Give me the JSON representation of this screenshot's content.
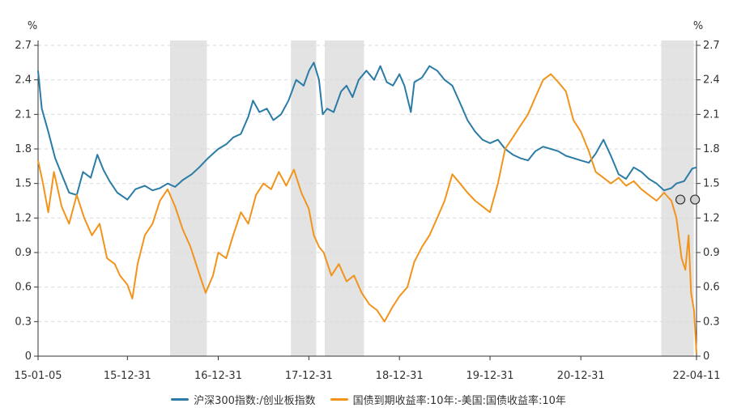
{
  "chart_data": {
    "type": "line",
    "units": {
      "left": "%",
      "right": "%"
    },
    "y_left": {
      "min": 0,
      "max": 2.7,
      "ticks": [
        "0",
        "0.3",
        "0.6",
        "0.9",
        "1.2",
        "1.5",
        "1.8",
        "2.1",
        "2.4",
        "2.7"
      ]
    },
    "y_right": {
      "min": 0,
      "max": 2.7,
      "ticks": [
        "0",
        "0.3",
        "0.6",
        "0.9",
        "1.2",
        "1.5",
        "1.8",
        "2.1",
        "2.4",
        "2.7"
      ]
    },
    "x_axis": {
      "start": "2015-01-05",
      "end": "2022-04-11",
      "ticks": [
        {
          "date": "2015-01-05",
          "label": "15-01-05"
        },
        {
          "date": "2015-12-31",
          "label": "15-12-31"
        },
        {
          "date": "2016-12-31",
          "label": "16-12-31"
        },
        {
          "date": "2017-12-31",
          "label": "17-12-31"
        },
        {
          "date": "2018-12-31",
          "label": "18-12-31"
        },
        {
          "date": "2019-12-31",
          "label": "19-12-31"
        },
        {
          "date": "2020-12-31",
          "label": "20-12-31"
        },
        {
          "date": "2022-04-11",
          "label": "22-04-11"
        }
      ]
    },
    "grid": true,
    "legend_position": "bottom",
    "shaded_periods": [
      {
        "start": "2016-06-20",
        "end": "2016-11-15"
      },
      {
        "start": "2017-10-20",
        "end": "2018-01-30"
      },
      {
        "start": "2018-03-05",
        "end": "2018-08-10"
      },
      {
        "start": "2021-11-20",
        "end": "2022-03-31"
      }
    ],
    "series": [
      {
        "name": "沪深300指数:/创业板指数",
        "color": "#2a7ca6",
        "axis": "left",
        "points": [
          [
            "2015-01-05",
            2.48
          ],
          [
            "2015-01-20",
            2.15
          ],
          [
            "2015-02-15",
            1.95
          ],
          [
            "2015-03-15",
            1.72
          ],
          [
            "2015-04-10",
            1.58
          ],
          [
            "2015-05-10",
            1.42
          ],
          [
            "2015-06-10",
            1.4
          ],
          [
            "2015-07-05",
            1.6
          ],
          [
            "2015-08-05",
            1.55
          ],
          [
            "2015-09-01",
            1.75
          ],
          [
            "2015-09-25",
            1.62
          ],
          [
            "2015-10-20",
            1.52
          ],
          [
            "2015-11-20",
            1.42
          ],
          [
            "2015-12-31",
            1.36
          ],
          [
            "2016-02-01",
            1.45
          ],
          [
            "2016-03-10",
            1.48
          ],
          [
            "2016-04-10",
            1.44
          ],
          [
            "2016-05-10",
            1.46
          ],
          [
            "2016-06-10",
            1.5
          ],
          [
            "2016-07-10",
            1.47
          ],
          [
            "2016-08-10",
            1.53
          ],
          [
            "2016-09-15",
            1.58
          ],
          [
            "2016-10-15",
            1.64
          ],
          [
            "2016-11-20",
            1.72
          ],
          [
            "2016-12-31",
            1.8
          ],
          [
            "2017-02-01",
            1.84
          ],
          [
            "2017-03-01",
            1.9
          ],
          [
            "2017-04-01",
            1.93
          ],
          [
            "2017-05-01",
            2.08
          ],
          [
            "2017-05-20",
            2.22
          ],
          [
            "2017-06-15",
            2.12
          ],
          [
            "2017-07-15",
            2.15
          ],
          [
            "2017-08-10",
            2.05
          ],
          [
            "2017-09-10",
            2.1
          ],
          [
            "2017-10-10",
            2.22
          ],
          [
            "2017-11-10",
            2.4
          ],
          [
            "2017-12-10",
            2.35
          ],
          [
            "2018-01-01",
            2.48
          ],
          [
            "2018-01-20",
            2.55
          ],
          [
            "2018-02-10",
            2.4
          ],
          [
            "2018-02-25",
            2.1
          ],
          [
            "2018-03-15",
            2.15
          ],
          [
            "2018-04-10",
            2.12
          ],
          [
            "2018-05-10",
            2.3
          ],
          [
            "2018-06-01",
            2.35
          ],
          [
            "2018-06-25",
            2.25
          ],
          [
            "2018-07-20",
            2.4
          ],
          [
            "2018-08-20",
            2.48
          ],
          [
            "2018-09-20",
            2.4
          ],
          [
            "2018-10-15",
            2.52
          ],
          [
            "2018-11-10",
            2.38
          ],
          [
            "2018-12-05",
            2.35
          ],
          [
            "2018-12-31",
            2.45
          ],
          [
            "2019-01-20",
            2.35
          ],
          [
            "2019-02-15",
            2.12
          ],
          [
            "2019-03-01",
            2.38
          ],
          [
            "2019-04-01",
            2.42
          ],
          [
            "2019-05-01",
            2.52
          ],
          [
            "2019-06-01",
            2.48
          ],
          [
            "2019-07-01",
            2.4
          ],
          [
            "2019-08-01",
            2.35
          ],
          [
            "2019-09-01",
            2.2
          ],
          [
            "2019-10-01",
            2.05
          ],
          [
            "2019-11-01",
            1.95
          ],
          [
            "2019-12-01",
            1.88
          ],
          [
            "2019-12-31",
            1.85
          ],
          [
            "2020-02-01",
            1.88
          ],
          [
            "2020-03-01",
            1.8
          ],
          [
            "2020-04-01",
            1.75
          ],
          [
            "2020-05-01",
            1.72
          ],
          [
            "2020-06-01",
            1.7
          ],
          [
            "2020-07-01",
            1.78
          ],
          [
            "2020-08-01",
            1.82
          ],
          [
            "2020-09-01",
            1.8
          ],
          [
            "2020-10-01",
            1.78
          ],
          [
            "2020-11-01",
            1.74
          ],
          [
            "2020-12-31",
            1.7
          ],
          [
            "2021-02-01",
            1.68
          ],
          [
            "2021-03-01",
            1.76
          ],
          [
            "2021-04-01",
            1.88
          ],
          [
            "2021-05-01",
            1.74
          ],
          [
            "2021-06-01",
            1.58
          ],
          [
            "2021-07-01",
            1.54
          ],
          [
            "2021-08-01",
            1.64
          ],
          [
            "2021-09-01",
            1.6
          ],
          [
            "2021-10-01",
            1.54
          ],
          [
            "2021-11-01",
            1.5
          ],
          [
            "2021-12-01",
            1.44
          ],
          [
            "2021-12-31",
            1.46
          ],
          [
            "2022-01-20",
            1.5
          ],
          [
            "2022-02-20",
            1.52
          ],
          [
            "2022-03-10",
            1.58
          ],
          [
            "2022-03-25",
            1.63
          ],
          [
            "2022-04-11",
            1.64
          ]
        ]
      },
      {
        "name": "国债到期收益率:10年:-美国:国债收益率:10年",
        "color": "#f2941c",
        "axis": "right",
        "points": [
          [
            "2015-01-05",
            1.7
          ],
          [
            "2015-01-25",
            1.5
          ],
          [
            "2015-02-15",
            1.25
          ],
          [
            "2015-03-10",
            1.6
          ],
          [
            "2015-04-10",
            1.3
          ],
          [
            "2015-05-10",
            1.15
          ],
          [
            "2015-06-10",
            1.4
          ],
          [
            "2015-07-10",
            1.2
          ],
          [
            "2015-08-10",
            1.05
          ],
          [
            "2015-09-10",
            1.15
          ],
          [
            "2015-10-10",
            0.85
          ],
          [
            "2015-11-10",
            0.8
          ],
          [
            "2015-12-01",
            0.7
          ],
          [
            "2015-12-31",
            0.62
          ],
          [
            "2016-01-20",
            0.5
          ],
          [
            "2016-02-10",
            0.8
          ],
          [
            "2016-03-10",
            1.05
          ],
          [
            "2016-04-10",
            1.15
          ],
          [
            "2016-05-10",
            1.35
          ],
          [
            "2016-06-10",
            1.45
          ],
          [
            "2016-07-10",
            1.3
          ],
          [
            "2016-08-10",
            1.1
          ],
          [
            "2016-09-10",
            0.95
          ],
          [
            "2016-10-10",
            0.75
          ],
          [
            "2016-11-10",
            0.55
          ],
          [
            "2016-12-10",
            0.7
          ],
          [
            "2016-12-31",
            0.9
          ],
          [
            "2017-02-01",
            0.85
          ],
          [
            "2017-03-01",
            1.05
          ],
          [
            "2017-04-01",
            1.25
          ],
          [
            "2017-05-01",
            1.15
          ],
          [
            "2017-06-01",
            1.4
          ],
          [
            "2017-07-01",
            1.5
          ],
          [
            "2017-08-01",
            1.45
          ],
          [
            "2017-09-01",
            1.6
          ],
          [
            "2017-10-01",
            1.48
          ],
          [
            "2017-11-01",
            1.62
          ],
          [
            "2017-12-01",
            1.42
          ],
          [
            "2017-12-31",
            1.28
          ],
          [
            "2018-01-20",
            1.05
          ],
          [
            "2018-02-10",
            0.95
          ],
          [
            "2018-03-01",
            0.9
          ],
          [
            "2018-04-01",
            0.7
          ],
          [
            "2018-05-01",
            0.8
          ],
          [
            "2018-06-01",
            0.65
          ],
          [
            "2018-07-01",
            0.7
          ],
          [
            "2018-08-01",
            0.55
          ],
          [
            "2018-09-01",
            0.45
          ],
          [
            "2018-10-01",
            0.4
          ],
          [
            "2018-11-01",
            0.3
          ],
          [
            "2018-12-01",
            0.42
          ],
          [
            "2018-12-31",
            0.52
          ],
          [
            "2019-02-01",
            0.6
          ],
          [
            "2019-03-01",
            0.82
          ],
          [
            "2019-04-01",
            0.95
          ],
          [
            "2019-05-01",
            1.05
          ],
          [
            "2019-06-01",
            1.2
          ],
          [
            "2019-07-01",
            1.35
          ],
          [
            "2019-08-01",
            1.58
          ],
          [
            "2019-09-01",
            1.5
          ],
          [
            "2019-10-01",
            1.42
          ],
          [
            "2019-11-01",
            1.35
          ],
          [
            "2019-12-01",
            1.3
          ],
          [
            "2019-12-31",
            1.25
          ],
          [
            "2020-02-01",
            1.5
          ],
          [
            "2020-03-01",
            1.8
          ],
          [
            "2020-04-01",
            1.9
          ],
          [
            "2020-05-01",
            2.0
          ],
          [
            "2020-06-01",
            2.1
          ],
          [
            "2020-07-01",
            2.25
          ],
          [
            "2020-08-01",
            2.4
          ],
          [
            "2020-09-01",
            2.45
          ],
          [
            "2020-10-01",
            2.38
          ],
          [
            "2020-11-01",
            2.3
          ],
          [
            "2020-12-01",
            2.05
          ],
          [
            "2020-12-31",
            1.95
          ],
          [
            "2021-02-01",
            1.78
          ],
          [
            "2021-03-01",
            1.6
          ],
          [
            "2021-04-01",
            1.55
          ],
          [
            "2021-05-01",
            1.5
          ],
          [
            "2021-06-01",
            1.55
          ],
          [
            "2021-07-01",
            1.48
          ],
          [
            "2021-08-01",
            1.52
          ],
          [
            "2021-09-01",
            1.45
          ],
          [
            "2021-10-01",
            1.4
          ],
          [
            "2021-11-01",
            1.35
          ],
          [
            "2021-12-01",
            1.42
          ],
          [
            "2021-12-31",
            1.35
          ],
          [
            "2022-01-20",
            1.2
          ],
          [
            "2022-02-10",
            0.85
          ],
          [
            "2022-02-25",
            0.75
          ],
          [
            "2022-03-10",
            1.05
          ],
          [
            "2022-03-20",
            0.55
          ],
          [
            "2022-04-01",
            0.4
          ],
          [
            "2022-04-11",
            0.02
          ]
        ]
      }
    ],
    "markers": [
      {
        "date": "2022-02-05",
        "value": 1.36,
        "shape": "circle"
      },
      {
        "date": "2022-04-05",
        "value": 1.36,
        "shape": "circle"
      }
    ]
  }
}
